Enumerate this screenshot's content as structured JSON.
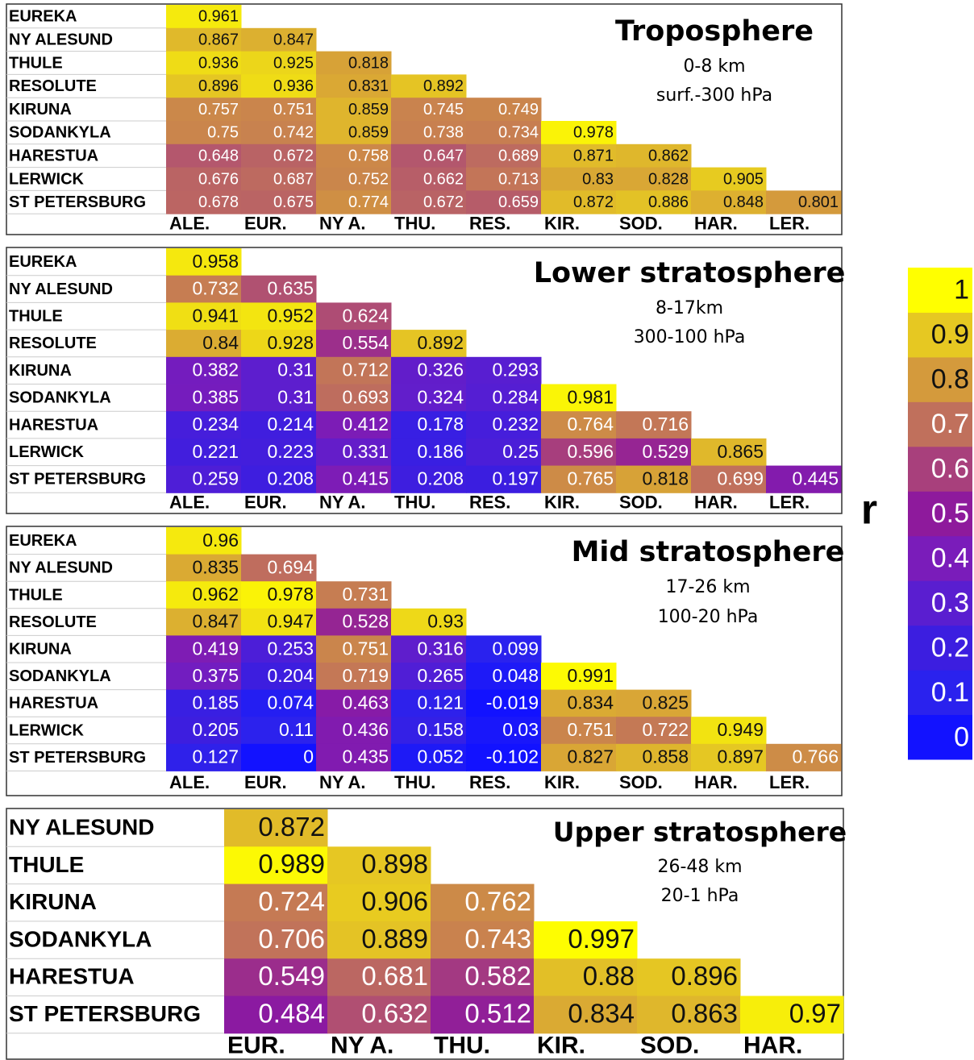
{
  "chart_data": [
    {
      "type": "heatmap",
      "title": "Troposphere",
      "notes": [
        "0-8 km",
        "surf.-300 hPa"
      ],
      "rows": [
        "EUREKA",
        "NY ALESUND",
        "THULE",
        "RESOLUTE",
        "KIRUNA",
        "SODANKYLA",
        "HARESTUA",
        "LERWICK",
        "ST PETERSBURG"
      ],
      "columns": [
        "ALE.",
        "EUR.",
        "NY A.",
        "THU.",
        "RES.",
        "KIR.",
        "SOD.",
        "HAR.",
        "LER."
      ],
      "values": [
        [
          0.961
        ],
        [
          0.867,
          0.847
        ],
        [
          0.936,
          0.925,
          0.818
        ],
        [
          0.896,
          0.936,
          0.831,
          0.892
        ],
        [
          0.757,
          0.751,
          0.859,
          0.745,
          0.749
        ],
        [
          0.75,
          0.742,
          0.859,
          0.738,
          0.734,
          0.978
        ],
        [
          0.648,
          0.672,
          0.758,
          0.647,
          0.689,
          0.871,
          0.862
        ],
        [
          0.676,
          0.687,
          0.752,
          0.662,
          0.713,
          0.83,
          0.828,
          0.905
        ],
        [
          0.678,
          0.675,
          0.774,
          0.672,
          0.659,
          0.872,
          0.886,
          0.848,
          0.801
        ]
      ]
    },
    {
      "type": "heatmap",
      "title": "Lower stratosphere",
      "notes": [
        "8-17km",
        "300-100 hPa"
      ],
      "rows": [
        "EUREKA",
        "NY ALESUND",
        "THULE",
        "RESOLUTE",
        "KIRUNA",
        "SODANKYLA",
        "HARESTUA",
        "LERWICK",
        "ST PETERSBURG"
      ],
      "columns": [
        "ALE.",
        "EUR.",
        "NY A.",
        "THU.",
        "RES.",
        "KIR.",
        "SOD.",
        "HAR.",
        "LER."
      ],
      "values": [
        [
          0.958
        ],
        [
          0.732,
          0.635
        ],
        [
          0.941,
          0.952,
          0.624
        ],
        [
          0.84,
          0.928,
          0.554,
          0.892
        ],
        [
          0.382,
          0.31,
          0.712,
          0.326,
          0.293
        ],
        [
          0.385,
          0.31,
          0.693,
          0.324,
          0.284,
          0.981
        ],
        [
          0.234,
          0.214,
          0.412,
          0.178,
          0.232,
          0.764,
          0.716
        ],
        [
          0.221,
          0.223,
          0.331,
          0.186,
          0.25,
          0.596,
          0.529,
          0.865
        ],
        [
          0.259,
          0.208,
          0.415,
          0.208,
          0.197,
          0.765,
          0.818,
          0.699,
          0.445
        ]
      ]
    },
    {
      "type": "heatmap",
      "title": "Mid stratosphere",
      "notes": [
        "17-26 km",
        "100-20 hPa"
      ],
      "rows": [
        "EUREKA",
        "NY ALESUND",
        "THULE",
        "RESOLUTE",
        "KIRUNA",
        "SODANKYLA",
        "HARESTUA",
        "LERWICK",
        "ST PETERSBURG"
      ],
      "columns": [
        "ALE.",
        "EUR.",
        "NY A.",
        "THU.",
        "RES.",
        "KIR.",
        "SOD.",
        "HAR.",
        "LER."
      ],
      "values": [
        [
          0.96
        ],
        [
          0.835,
          0.694
        ],
        [
          0.962,
          0.978,
          0.731
        ],
        [
          0.847,
          0.947,
          0.528,
          0.93
        ],
        [
          0.419,
          0.253,
          0.751,
          0.316,
          0.099
        ],
        [
          0.375,
          0.204,
          0.719,
          0.265,
          0.048,
          0.991
        ],
        [
          0.185,
          0.074,
          0.463,
          0.121,
          -0.019,
          0.834,
          0.825
        ],
        [
          0.205,
          0.11,
          0.436,
          0.158,
          0.03,
          0.751,
          0.722,
          0.949
        ],
        [
          0.127,
          0,
          0.435,
          0.052,
          -0.102,
          0.827,
          0.858,
          0.897,
          0.766
        ]
      ]
    },
    {
      "type": "heatmap",
      "title": "Upper stratosphere",
      "notes": [
        "26-48 km",
        "20-1 hPa"
      ],
      "rows": [
        "NY ALESUND",
        "THULE",
        "KIRUNA",
        "SODANKYLA",
        "HARESTUA",
        "ST PETERSBURG"
      ],
      "columns": [
        "EUR.",
        "NY A.",
        "THU.",
        "KIR.",
        "SOD.",
        "HAR."
      ],
      "values": [
        [
          0.872
        ],
        [
          0.989,
          0.898
        ],
        [
          0.724,
          0.906,
          0.762
        ],
        [
          0.706,
          0.889,
          0.743,
          0.997
        ],
        [
          0.549,
          0.681,
          0.582,
          0.88,
          0.896
        ],
        [
          0.484,
          0.632,
          0.512,
          0.834,
          0.863,
          0.97
        ]
      ]
    },
    {
      "type": "colorbar",
      "label": "r",
      "ticks": [
        0,
        0.1,
        0.2,
        0.3,
        0.4,
        0.5,
        0.6,
        0.7,
        0.8,
        0.9,
        1
      ],
      "colors": [
        "#1212ff",
        "#2a22ee",
        "#3c1ee0",
        "#5a1ed0",
        "#7a1cba",
        "#8e1a9c",
        "#a8407c",
        "#c0705c",
        "#d49a3c",
        "#e6c822",
        "#ffff00"
      ]
    }
  ]
}
